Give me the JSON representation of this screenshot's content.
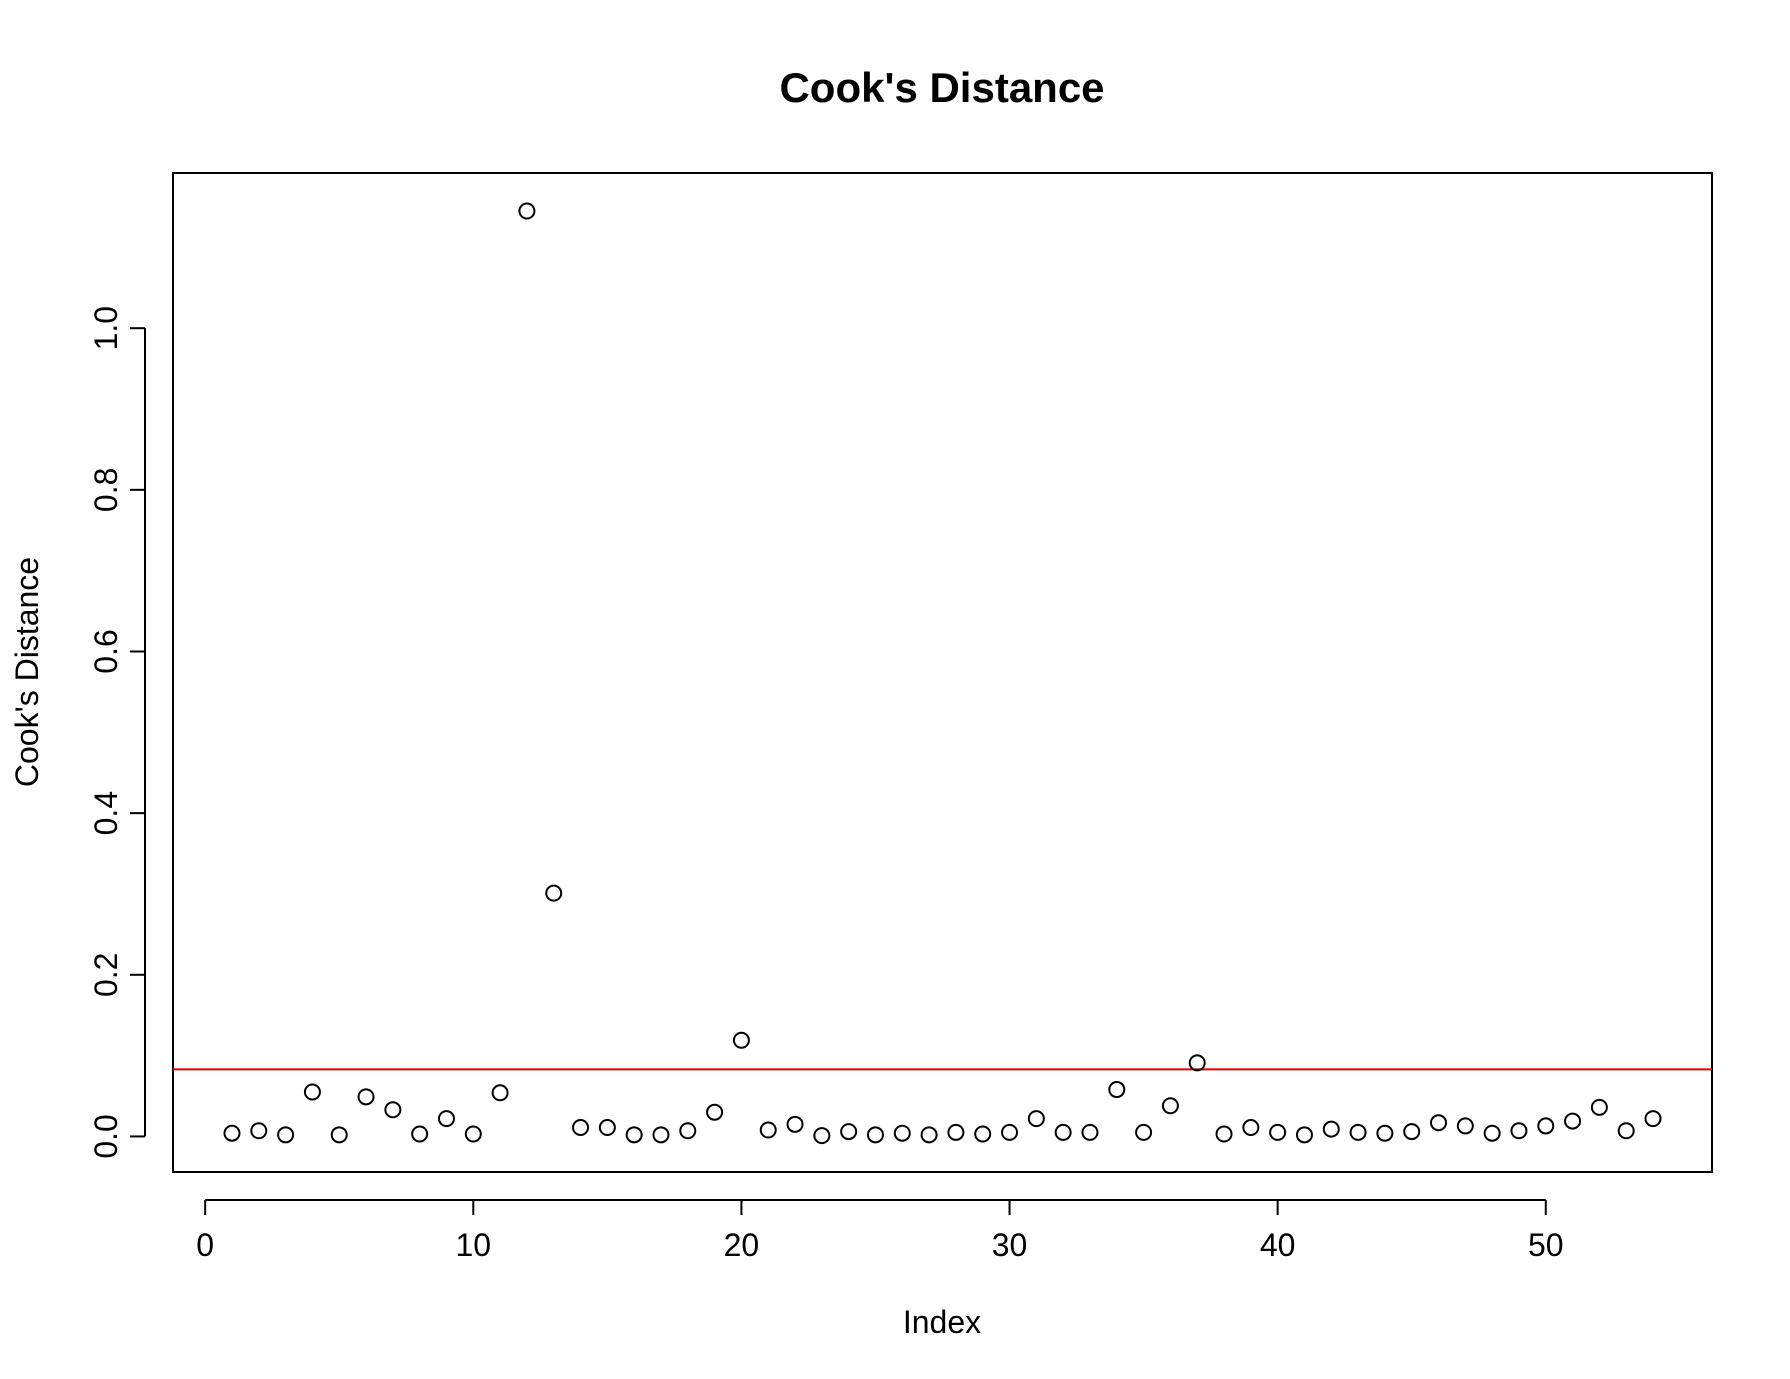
{
  "chart_data": {
    "type": "scatter",
    "title": "Cook's Distance",
    "xlabel": "Index",
    "ylabel": "Cook's Distance",
    "xlim": [
      -1.2,
      56.2
    ],
    "ylim": [
      -0.044,
      1.192
    ],
    "x_ticks": [
      0,
      10,
      20,
      30,
      40,
      50
    ],
    "x_tick_labels": [
      "0",
      "10",
      "20",
      "30",
      "40",
      "50"
    ],
    "y_ticks": [
      0.0,
      0.2,
      0.4,
      0.6,
      0.8,
      1.0
    ],
    "y_tick_labels": [
      "0.0",
      "0.2",
      "0.4",
      "0.6",
      "0.8",
      "1.0"
    ],
    "grid": false,
    "marker": "open-circle",
    "reference_line": {
      "y": 0.083,
      "color": "#e00000"
    },
    "x": [
      1,
      2,
      3,
      4,
      5,
      6,
      7,
      8,
      9,
      10,
      11,
      12,
      13,
      14,
      15,
      16,
      17,
      18,
      19,
      20,
      21,
      22,
      23,
      24,
      25,
      26,
      27,
      28,
      29,
      30,
      31,
      32,
      33,
      34,
      35,
      36,
      37,
      38,
      39,
      40,
      41,
      42,
      43,
      44,
      45,
      46,
      47,
      48,
      49,
      50,
      51,
      52,
      53,
      54
    ],
    "y": [
      0.004,
      0.007,
      0.002,
      0.055,
      0.002,
      0.049,
      0.033,
      0.003,
      0.022,
      0.003,
      0.054,
      1.145,
      0.301,
      0.011,
      0.011,
      0.002,
      0.002,
      0.007,
      0.03,
      0.119,
      0.008,
      0.015,
      0.001,
      0.006,
      0.002,
      0.004,
      0.002,
      0.005,
      0.003,
      0.005,
      0.022,
      0.005,
      0.005,
      0.058,
      0.005,
      0.038,
      0.091,
      0.003,
      0.011,
      0.005,
      0.002,
      0.009,
      0.005,
      0.004,
      0.006,
      0.017,
      0.013,
      0.004,
      0.007,
      0.013,
      0.019,
      0.036,
      0.007,
      0.022
    ]
  }
}
